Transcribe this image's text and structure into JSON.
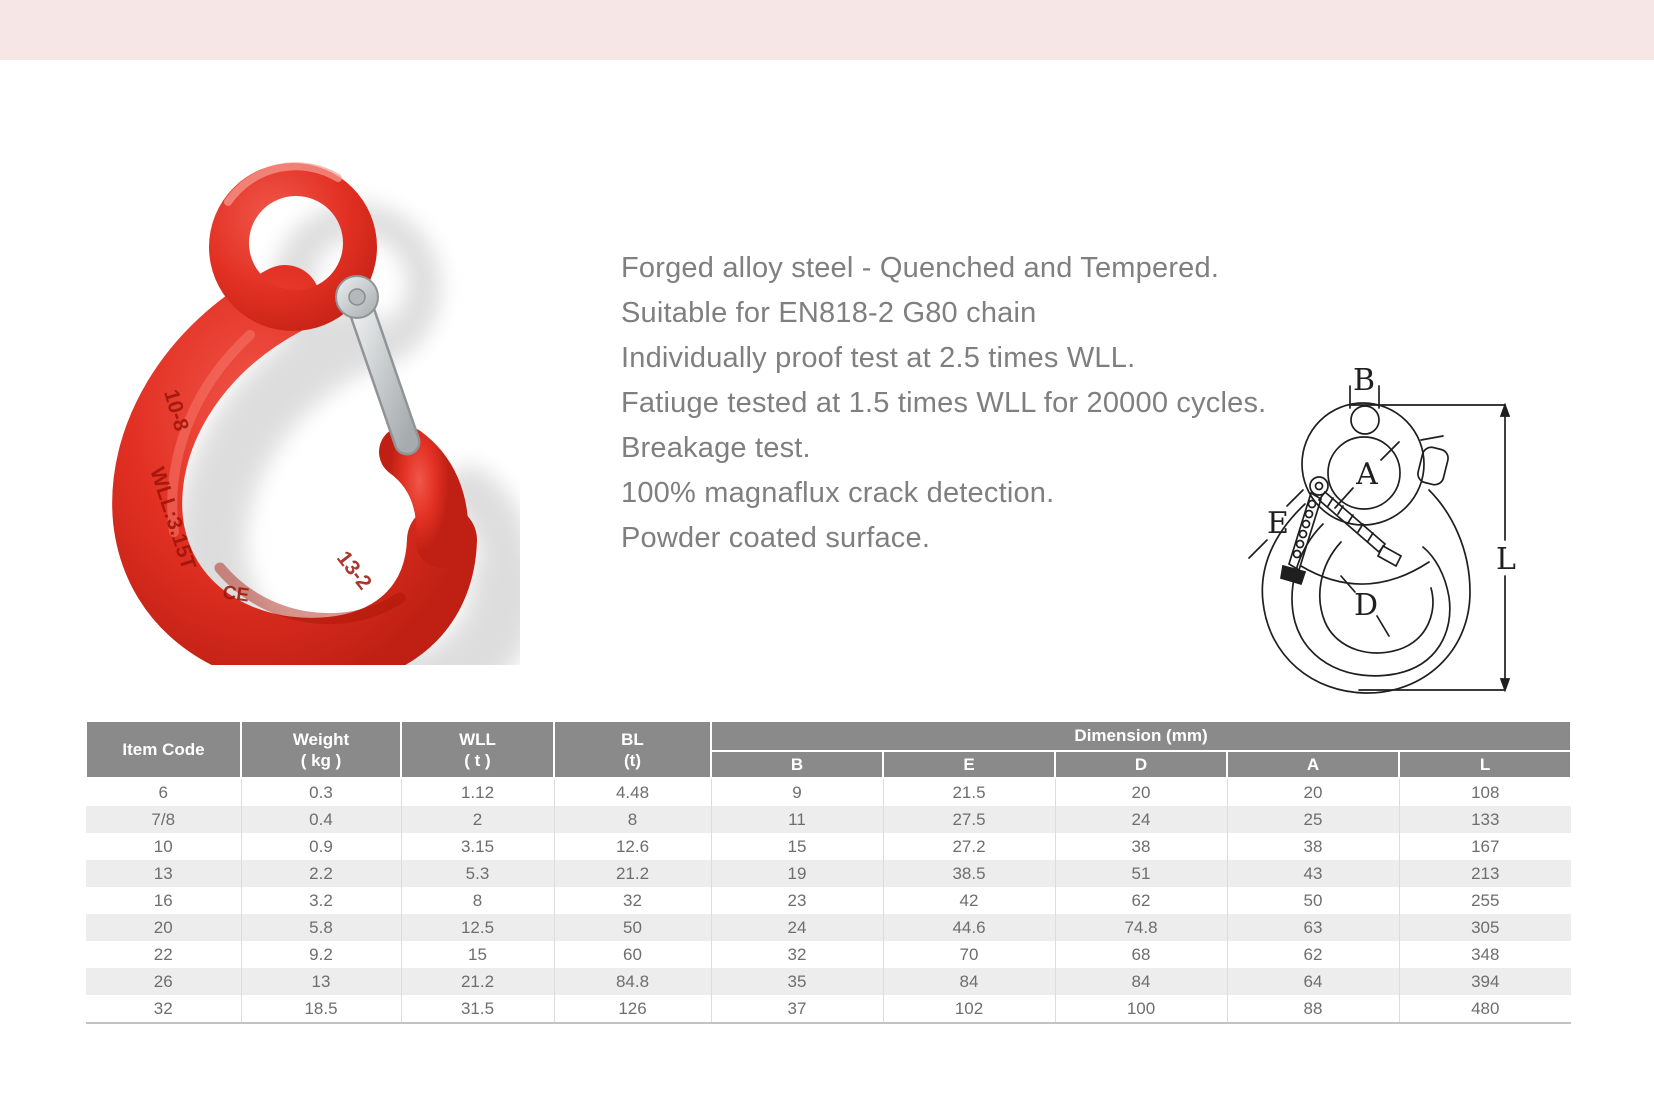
{
  "page": {
    "top_band_color": "#f6e7e6",
    "background": "#ffffff"
  },
  "photo": {
    "alt": "Red eye sling hook with steel safety latch",
    "hook_color": "#e23023",
    "latch_color": "#c9cdce",
    "markings": {
      "grade": "10-8",
      "wll": "WLL:3.15T",
      "ce": "CE",
      "size": "13-2"
    }
  },
  "description": {
    "text_color": "#7f7f7f",
    "lines": [
      "Forged alloy steel - Quenched and Tempered.",
      "Suitable for EN818-2 G80 chain",
      "Individually proof test at 2.5 times WLL.",
      "Fatiuge tested at 1.5 times WLL for 20000 cycles.",
      "Breakage test.",
      "100% magnaflux crack detection.",
      "Powder coated surface."
    ]
  },
  "diagram": {
    "labels": {
      "b": "B",
      "a": "A",
      "e": "E",
      "d": "D",
      "l": "L"
    }
  },
  "table": {
    "colors": {
      "header_bg": "#8a8a8a",
      "header_text": "#ffffff",
      "row_alt_bg": "#ededed",
      "cell_text": "#6e6e6e",
      "column_divider": "#dcdcdc"
    },
    "header": {
      "item_code": "Item Code",
      "weight": "Weight",
      "weight_unit": "( kg )",
      "wll": "WLL",
      "wll_unit": "( t )",
      "bl": "BL",
      "bl_unit": "(t)",
      "dimension": "Dimension (mm)",
      "dim_cols": [
        "B",
        "E",
        "D",
        "A",
        "L"
      ]
    },
    "rows": [
      [
        "6",
        "0.3",
        "1.12",
        "4.48",
        "9",
        "21.5",
        "20",
        "20",
        "108"
      ],
      [
        "7/8",
        "0.4",
        "2",
        "8",
        "11",
        "27.5",
        "24",
        "25",
        "133"
      ],
      [
        "10",
        "0.9",
        "3.15",
        "12.6",
        "15",
        "27.2",
        "38",
        "38",
        "167"
      ],
      [
        "13",
        "2.2",
        "5.3",
        "21.2",
        "19",
        "38.5",
        "51",
        "43",
        "213"
      ],
      [
        "16",
        "3.2",
        "8",
        "32",
        "23",
        "42",
        "62",
        "50",
        "255"
      ],
      [
        "20",
        "5.8",
        "12.5",
        "50",
        "24",
        "44.6",
        "74.8",
        "63",
        "305"
      ],
      [
        "22",
        "9.2",
        "15",
        "60",
        "32",
        "70",
        "68",
        "62",
        "348"
      ],
      [
        "26",
        "13",
        "21.2",
        "84.8",
        "35",
        "84",
        "84",
        "64",
        "394"
      ],
      [
        "32",
        "18.5",
        "31.5",
        "126",
        "37",
        "102",
        "100",
        "88",
        "480"
      ]
    ]
  }
}
